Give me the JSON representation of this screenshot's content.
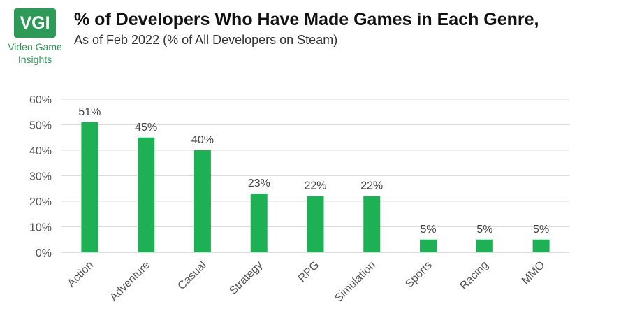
{
  "logo": {
    "mark": "VGI",
    "line1": "Video Game",
    "line2": "Insights"
  },
  "chart_data": {
    "type": "bar",
    "title": "% of Developers Who Have Made Games in Each Genre,",
    "subtitle": "As of Feb 2022 (% of All Developers on Steam)",
    "categories": [
      "Action",
      "Adventure",
      "Casual",
      "Strategy",
      "RPG",
      "Simulation",
      "Sports",
      "Racing",
      "MMO"
    ],
    "values": [
      51,
      45,
      40,
      23,
      22,
      22,
      5,
      5,
      5
    ],
    "value_labels": [
      "51%",
      "45%",
      "40%",
      "23%",
      "22%",
      "22%",
      "5%",
      "5%",
      "5%"
    ],
    "y_ticks": [
      "0%",
      "10%",
      "20%",
      "30%",
      "40%",
      "50%",
      "60%"
    ],
    "ylim": [
      0,
      60
    ],
    "grid": true,
    "legend": "none",
    "bar_color": "#1db054",
    "xlabel": "",
    "ylabel": ""
  }
}
